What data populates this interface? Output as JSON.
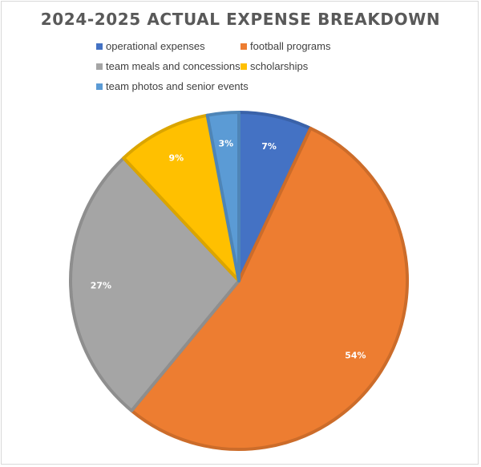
{
  "chart_data": {
    "type": "pie",
    "title": "2024-2025 ACTUAL EXPENSE BREAKDOWN",
    "categories": [
      "operational expenses",
      "football programs",
      "team meals and concessions",
      "scholarships",
      "team photos and senior events"
    ],
    "values": [
      7,
      54,
      27,
      9,
      3
    ],
    "data_labels": [
      "7%",
      "54%",
      "27%",
      "9%",
      "3%"
    ],
    "colors": [
      "#4472C4",
      "#ED7D31",
      "#A5A5A5",
      "#FFC000",
      "#5B9BD5"
    ],
    "legend_position": "top"
  }
}
